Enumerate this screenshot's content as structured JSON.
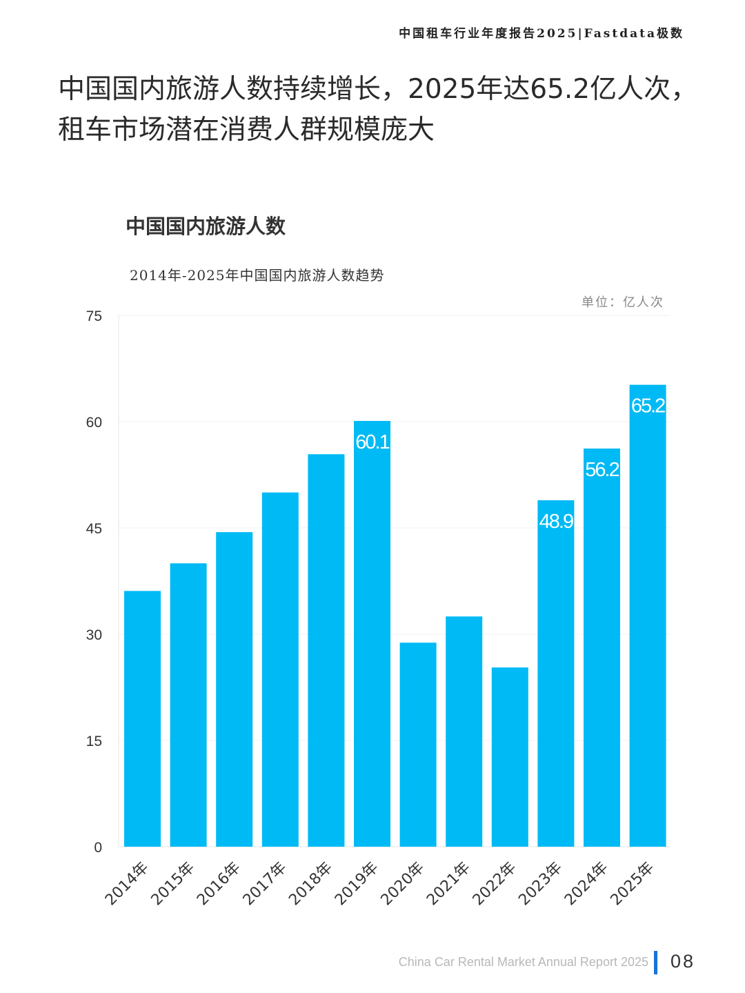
{
  "header": {
    "report_title": "中国租车行业年度报告2025|Fastdata极数"
  },
  "headline": {
    "line1": "中国国内旅游人数持续增长，2025年达65.2亿人次，",
    "line2": "租车市场潜在消费人群规模庞大"
  },
  "chart_data": {
    "type": "bar",
    "title": "中国国内旅游人数",
    "subtitle": "2014年-2025年中国国内旅游人数趋势",
    "unit_label": "单位：亿人次",
    "xlabel": "",
    "ylabel": "",
    "ylim": [
      0,
      75
    ],
    "yticks": [
      0,
      15,
      30,
      45,
      60,
      75
    ],
    "grid": true,
    "bar_color": "#00baf5",
    "label_color": "#ffffff",
    "categories": [
      "2014年",
      "2015年",
      "2016年",
      "2017年",
      "2018年",
      "2019年",
      "2020年",
      "2021年",
      "2022年",
      "2023年",
      "2024年",
      "2025年"
    ],
    "values": [
      36.1,
      40.0,
      44.4,
      50.0,
      55.4,
      60.1,
      28.8,
      32.5,
      25.3,
      48.9,
      56.2,
      65.2
    ],
    "data_labels": [
      "",
      "",
      "",
      "",
      "",
      "60.1",
      "",
      "",
      "",
      "48.9",
      "56.2",
      "65.2"
    ]
  },
  "footer": {
    "report_name": "China Car Rental Market Annual Report 2025",
    "page_number": "08",
    "accent_color": "#1673d8"
  }
}
